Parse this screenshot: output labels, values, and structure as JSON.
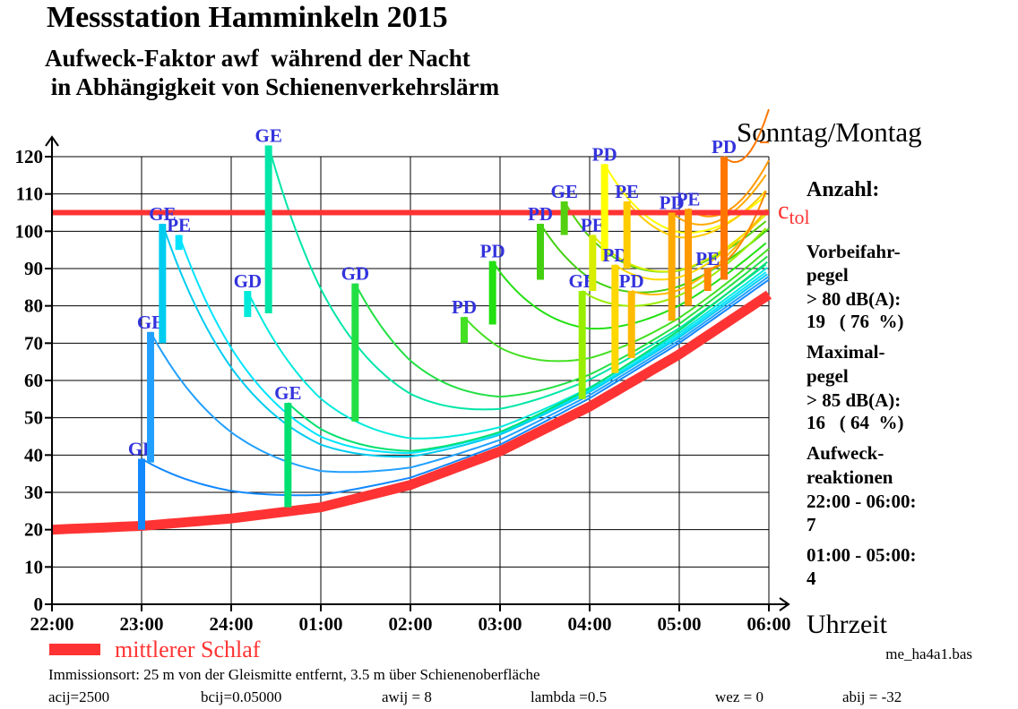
{
  "title": "Messstation Hamminkeln 2015",
  "subtitle_1": "Aufweck-Faktor awf  während der Nacht",
  "subtitle_2": " in Abhängigkeit von Schienenverkehrslärm",
  "day_label": "Sonntag/Montag",
  "side_panel": {
    "heading": "Anzahl:",
    "pass_1": "Vorbeifahr-",
    "pass_2": "pegel",
    "pass_3": "> 80 dB(A):",
    "pass_4": "19   ( 76  %)",
    "max_1": "Maximal-",
    "max_2": "pegel",
    "max_3": "> 85 dB(A):",
    "max_4": "16   ( 64  %)",
    "wake_1": "Aufweck-",
    "wake_2": "reaktionen",
    "wake_3": "22:00 - 06:00:",
    "wake_4": "7",
    "wake_5": "01:00 - 05:00:",
    "wake_6": "4"
  },
  "legend": {
    "mean_sleep": "mittlerer Schlaf",
    "mean_sleep_color": "#ff3333"
  },
  "file_name": "me_ha4a1.bas",
  "footer_1": "Immissionsort: 25 m von der Gleismitte entfernt, 3.5 m über Schienenoberfläche",
  "footer_2": [
    "acij=2500",
    "bcij=0.05000",
    "awij = 8",
    "lambda =0.5",
    "wez = 0",
    "abij = -32"
  ],
  "chart_data": {
    "type": "line",
    "xlabel": "Uhrzeit",
    "ylabel": "",
    "x_ticks": [
      "22:00",
      "23:00",
      "24:00",
      "01:00",
      "02:00",
      "03:00",
      "04:00",
      "05:00",
      "06:00"
    ],
    "y_ticks": [
      0,
      10,
      20,
      30,
      40,
      50,
      60,
      70,
      80,
      90,
      100,
      110,
      120
    ],
    "ylim": [
      0,
      120
    ],
    "grid": true,
    "threshold": {
      "name_main": "c",
      "name_sub": "tol",
      "value": 105,
      "color": "#ff3333"
    },
    "mean_sleep": {
      "x": [
        "22:00",
        "23:00",
        "24:00",
        "01:00",
        "02:00",
        "03:00",
        "04:00",
        "05:00",
        "06:00"
      ],
      "values": [
        20,
        21,
        23,
        26,
        32,
        41,
        53,
        67,
        83
      ]
    },
    "events": [
      {
        "time": "23:00",
        "from": 20,
        "to": 39,
        "label": "GE",
        "color": "#1188ff"
      },
      {
        "time": "23:06",
        "from": 38,
        "to": 73,
        "label": "GE",
        "color": "#22a0ff"
      },
      {
        "time": "23:14",
        "from": 70,
        "to": 102,
        "label": "GE",
        "color": "#00ccf0"
      },
      {
        "time": "23:25",
        "from": 95,
        "to": 99,
        "label": "PE",
        "color": "#00e4ff"
      },
      {
        "time": "00:11",
        "from": 77,
        "to": 84,
        "label": "GD",
        "color": "#00eadc"
      },
      {
        "time": "00:25",
        "from": 78,
        "to": 123,
        "label": "GE",
        "color": "#00e6a8"
      },
      {
        "time": "00:38",
        "from": 26,
        "to": 54,
        "label": "GE",
        "color": "#00e070"
      },
      {
        "time": "01:23",
        "from": 49,
        "to": 86,
        "label": "GD",
        "color": "#22e044"
      },
      {
        "time": "02:36",
        "from": 70,
        "to": 77,
        "label": "PD",
        "color": "#44e022"
      },
      {
        "time": "02:55",
        "from": 75,
        "to": 92,
        "label": "PD",
        "color": "#22e011"
      },
      {
        "time": "03:27",
        "from": 87,
        "to": 102,
        "label": "PD",
        "color": "#44d011"
      },
      {
        "time": "03:43",
        "from": 99,
        "to": 108,
        "label": "GE",
        "color": "#55d011"
      },
      {
        "time": "03:55",
        "from": 55,
        "to": 84,
        "label": "GE",
        "color": "#99ee00"
      },
      {
        "time": "04:02",
        "from": 84,
        "to": 99,
        "label": "PE",
        "color": "#d8ee00"
      },
      {
        "time": "04:10",
        "from": 92,
        "to": 118,
        "label": "PD",
        "color": "#ffff00"
      },
      {
        "time": "04:17",
        "from": 62,
        "to": 91,
        "label": "PD",
        "color": "#ffd800"
      },
      {
        "time": "04:25",
        "from": 90,
        "to": 108,
        "label": "PE",
        "color": "#ffcc00"
      },
      {
        "time": "04:28",
        "from": 66,
        "to": 84,
        "label": "PD",
        "color": "#ffbb00"
      },
      {
        "time": "04:55",
        "from": 76,
        "to": 105,
        "label": "PD",
        "color": "#ffaa00"
      },
      {
        "time": "05:06",
        "from": 80,
        "to": 106,
        "label": "PE",
        "color": "#ff9900"
      },
      {
        "time": "05:19",
        "from": 84,
        "to": 90,
        "label": "PE",
        "color": "#ff8800"
      },
      {
        "time": "05:30",
        "from": 87,
        "to": 120,
        "label": "PD",
        "color": "#ff7700"
      }
    ]
  }
}
